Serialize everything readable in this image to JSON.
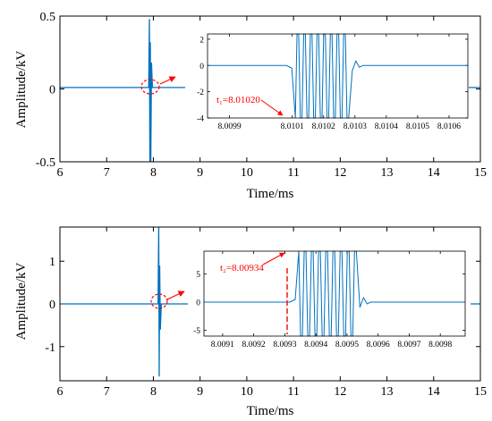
{
  "colors": {
    "signal": "#0072BD",
    "annotation": "#FF0000",
    "axis": "#000000"
  },
  "chart_data": [
    {
      "type": "line",
      "xlabel": "Time/ms",
      "ylabel": "Amplitude/kV",
      "xlim": [
        6,
        15
      ],
      "ylim": [
        -0.5,
        0.5
      ],
      "xticks": [
        "6",
        "7",
        "8",
        "9",
        "10",
        "11",
        "12",
        "13",
        "14",
        "15"
      ],
      "yticks": [
        "0.5",
        "0",
        "-0.5"
      ],
      "series": [
        {
          "x": [
            6,
            7.9,
            7.915,
            7.925,
            7.935,
            7.945,
            7.96,
            7.98,
            15
          ],
          "y": [
            0.01,
            0.01,
            0.48,
            -0.5,
            0.32,
            -0.5,
            0.18,
            0.01,
            0.01
          ]
        }
      ],
      "inset": {
        "xlim": [
          8.00983,
          8.01066
        ],
        "ylim": [
          -4,
          2.4
        ],
        "xticks": [
          "8.0099",
          "8.0101",
          "8.0102",
          "8.0103",
          "8.0104",
          "8.0105",
          "8.0106"
        ],
        "yticks": [
          "2",
          "0",
          "-2",
          "-4"
        ],
        "annotation": "t₁=8.01020",
        "ringing": {
          "x_start": 8.01011,
          "x_end": 8.01028,
          "high": 2.4,
          "low": -4,
          "baseline": 0,
          "cycles": 8
        }
      }
    },
    {
      "type": "line",
      "xlabel": "Time/ms",
      "ylabel": "Amplitude/kV",
      "xlim": [
        6,
        15
      ],
      "ylim": [
        -1.8,
        1.8
      ],
      "xticks": [
        "6",
        "7",
        "8",
        "9",
        "10",
        "11",
        "12",
        "13",
        "14",
        "15"
      ],
      "yticks": [
        "1",
        "0",
        "-1"
      ],
      "series": [
        {
          "x": [
            6,
            8.1,
            8.115,
            8.125,
            8.135,
            8.15,
            8.17,
            15
          ],
          "y": [
            0,
            0,
            1.8,
            -1.7,
            0.9,
            -0.6,
            0,
            0
          ],
          "series_type": "line"
        }
      ],
      "inset": {
        "xlim": [
          8.00904,
          8.00988
        ],
        "ylim": [
          -6,
          9
        ],
        "xticks": [
          "8.0091",
          "8.0092",
          "8.0093",
          "8.0094",
          "8.0095",
          "8.0096",
          "8.0097",
          "8.0098"
        ],
        "yticks": [
          "5",
          "0",
          "-5"
        ],
        "annotation": "t₂=8.00934",
        "ringing": {
          "x_start": 8.009345,
          "x_end": 8.00953,
          "high": 9,
          "low": -6,
          "baseline": 0,
          "cycles": 8
        }
      }
    }
  ]
}
